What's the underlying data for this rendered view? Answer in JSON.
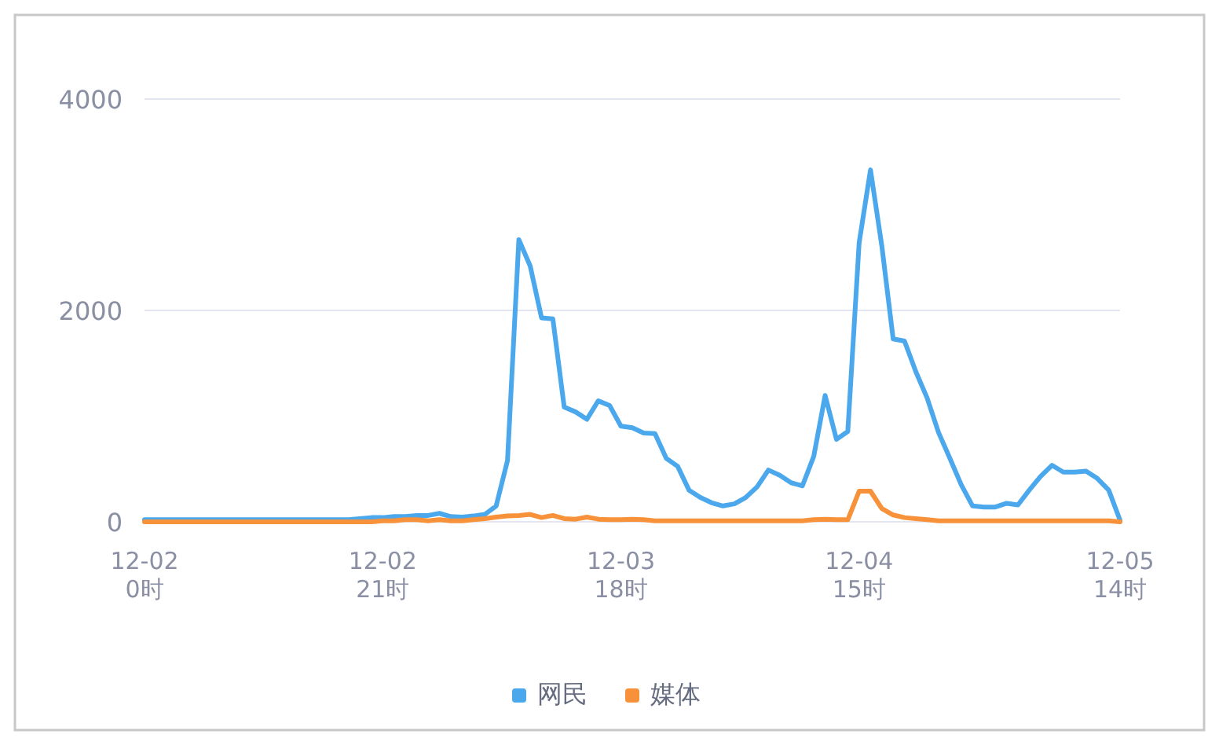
{
  "chart_data": {
    "type": "line",
    "categories": [
      "12-02\n0时",
      null,
      null,
      null,
      null,
      null,
      null,
      null,
      null,
      null,
      null,
      null,
      null,
      null,
      null,
      null,
      null,
      null,
      null,
      null,
      null,
      "12-02\n21时",
      null,
      null,
      null,
      null,
      null,
      null,
      null,
      null,
      null,
      null,
      null,
      null,
      null,
      null,
      null,
      null,
      null,
      null,
      null,
      null,
      "12-03\n18时",
      null,
      null,
      null,
      null,
      null,
      null,
      null,
      null,
      null,
      null,
      null,
      null,
      null,
      null,
      null,
      null,
      null,
      null,
      null,
      null,
      "12-04\n15时",
      null,
      null,
      null,
      null,
      null,
      null,
      null,
      null,
      null,
      null,
      null,
      null,
      null,
      null,
      null,
      null,
      null,
      null,
      null,
      null,
      null,
      null,
      "12-05\n14时"
    ],
    "series": [
      {
        "name": "网民",
        "color": "#4ba8ec",
        "values": [
          20,
          20,
          20,
          20,
          20,
          20,
          20,
          20,
          20,
          20,
          20,
          20,
          20,
          20,
          20,
          20,
          20,
          20,
          20,
          30,
          40,
          40,
          50,
          50,
          60,
          60,
          80,
          50,
          45,
          55,
          70,
          150,
          580,
          2670,
          2420,
          1930,
          1920,
          1085,
          1040,
          970,
          1145,
          1100,
          905,
          890,
          840,
          835,
          600,
          525,
          300,
          230,
          180,
          150,
          170,
          230,
          330,
          490,
          440,
          370,
          340,
          620,
          1195,
          780,
          855,
          2640,
          3330,
          2610,
          1730,
          1710,
          1420,
          1170,
          845,
          600,
          350,
          150,
          140,
          140,
          175,
          160,
          300,
          430,
          535,
          470,
          470,
          480,
          410,
          300,
          15
        ]
      },
      {
        "name": "媒体",
        "color": "#f7923a",
        "values": [
          0,
          0,
          0,
          0,
          0,
          0,
          0,
          0,
          0,
          0,
          0,
          0,
          0,
          0,
          0,
          0,
          0,
          0,
          0,
          0,
          0,
          10,
          10,
          20,
          20,
          10,
          20,
          10,
          10,
          20,
          30,
          45,
          55,
          60,
          70,
          40,
          60,
          30,
          25,
          45,
          25,
          20,
          20,
          25,
          20,
          10,
          10,
          10,
          10,
          10,
          10,
          10,
          10,
          10,
          10,
          10,
          10,
          10,
          10,
          20,
          25,
          20,
          20,
          290,
          290,
          125,
          65,
          40,
          30,
          20,
          10,
          10,
          10,
          10,
          10,
          10,
          10,
          10,
          10,
          10,
          10,
          10,
          10,
          10,
          10,
          10,
          0
        ]
      }
    ],
    "ylim": [
      0,
      4000
    ],
    "yticks": [
      0,
      2000,
      4000
    ],
    "grid": "y",
    "legend": "bottom"
  }
}
